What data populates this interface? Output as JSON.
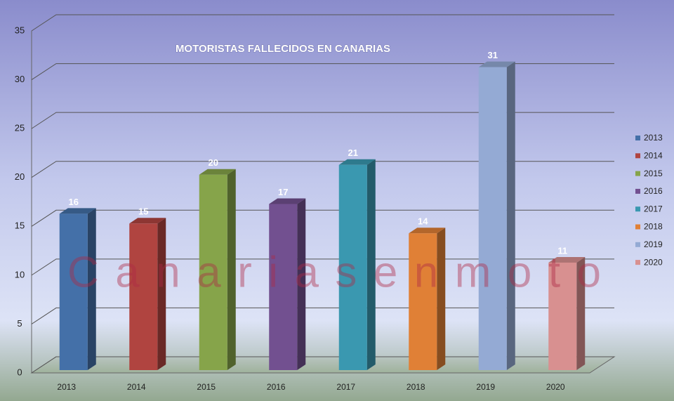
{
  "chart_data": {
    "type": "bar3d",
    "title": "MOTORISTAS FALLECIDOS EN CANARIAS",
    "watermark": "Canariasenmoto",
    "categories": [
      "2013",
      "2014",
      "2015",
      "2016",
      "2017",
      "2018",
      "2019",
      "2020"
    ],
    "values": [
      16,
      15,
      20,
      17,
      21,
      14,
      31,
      11
    ],
    "colors": [
      "#4470a8",
      "#b04440",
      "#86a44a",
      "#725090",
      "#3a98b0",
      "#e08036",
      "#94aad4",
      "#d89090"
    ],
    "ylim": [
      0,
      35
    ],
    "yticks": [
      0,
      5,
      10,
      15,
      20,
      25,
      30,
      35
    ],
    "grid": true,
    "legend": "right"
  }
}
